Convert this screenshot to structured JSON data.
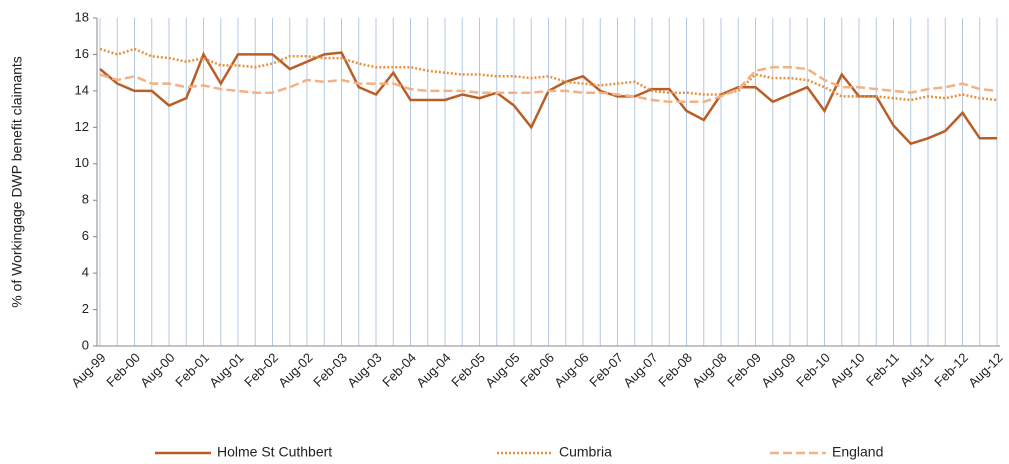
{
  "chart_data": {
    "type": "line",
    "y_label": "% of Workingage DWP benefit claimants",
    "categories": [
      "Aug-99",
      null,
      "Feb-00",
      null,
      "Aug-00",
      null,
      "Feb-01",
      null,
      "Aug-01",
      null,
      "Feb-02",
      null,
      "Aug-02",
      null,
      "Feb-03",
      null,
      "Aug-03",
      null,
      "Feb-04",
      null,
      "Aug-04",
      null,
      "Feb-05",
      null,
      "Aug-05",
      null,
      "Feb-06",
      null,
      "Aug-06",
      null,
      "Feb-07",
      null,
      "Aug-07",
      null,
      "Feb-08",
      null,
      "Aug-08",
      null,
      "Feb-09",
      null,
      "Aug-09",
      null,
      "Feb-10",
      null,
      "Aug-10",
      null,
      "Feb-11",
      null,
      "Aug-11",
      null,
      "Feb-12",
      null,
      "Aug-12"
    ],
    "series": [
      {
        "name": "Holme St Cuthbert",
        "color": "#b85e26",
        "dash": "solid",
        "values": [
          15.2,
          14.4,
          14.0,
          14.0,
          13.2,
          13.6,
          16.0,
          14.4,
          16.0,
          16.0,
          16.0,
          15.2,
          15.6,
          16.0,
          16.1,
          14.2,
          13.8,
          15.0,
          13.5,
          13.5,
          13.5,
          13.8,
          13.6,
          13.9,
          13.2,
          12.0,
          14.0,
          14.5,
          14.8,
          14.0,
          13.7,
          13.7,
          14.1,
          14.1,
          12.9,
          12.4,
          13.8,
          14.2,
          14.2,
          13.4,
          13.8,
          14.2,
          12.9,
          14.9,
          13.7,
          13.7,
          12.1,
          11.1,
          11.4,
          11.8,
          12.8,
          11.4,
          11.4
        ]
      },
      {
        "name": "Cumbria",
        "color": "#e8913a",
        "dash": "dotted",
        "values": [
          16.3,
          16.0,
          16.3,
          15.9,
          15.8,
          15.6,
          15.8,
          15.4,
          15.4,
          15.3,
          15.5,
          15.9,
          15.9,
          15.8,
          15.8,
          15.5,
          15.3,
          15.3,
          15.3,
          15.1,
          15.0,
          14.9,
          14.9,
          14.8,
          14.8,
          14.7,
          14.8,
          14.5,
          14.4,
          14.3,
          14.4,
          14.5,
          14.0,
          13.9,
          13.9,
          13.8,
          13.8,
          14.0,
          14.9,
          14.7,
          14.7,
          14.6,
          14.2,
          13.7,
          13.7,
          13.7,
          13.6,
          13.5,
          13.7,
          13.6,
          13.8,
          13.6,
          13.5
        ]
      },
      {
        "name": "England",
        "color": "#f4b183",
        "dash": "dashed",
        "values": [
          14.9,
          14.6,
          14.8,
          14.4,
          14.4,
          14.2,
          14.3,
          14.1,
          14.0,
          13.9,
          13.9,
          14.2,
          14.6,
          14.5,
          14.6,
          14.4,
          14.4,
          14.4,
          14.1,
          14.0,
          14.0,
          14.0,
          13.9,
          13.9,
          13.9,
          13.9,
          14.0,
          14.0,
          13.9,
          13.9,
          13.8,
          13.7,
          13.5,
          13.4,
          13.4,
          13.4,
          13.7,
          14.1,
          15.1,
          15.3,
          15.3,
          15.2,
          14.6,
          14.2,
          14.2,
          14.1,
          14.0,
          13.9,
          14.1,
          14.2,
          14.4,
          14.1,
          14.0
        ]
      }
    ],
    "ylim": [
      0,
      18
    ],
    "yticks": [
      0,
      2,
      4,
      6,
      8,
      10,
      12,
      14,
      16,
      18
    ],
    "grid": "x",
    "legend": "bottom"
  }
}
